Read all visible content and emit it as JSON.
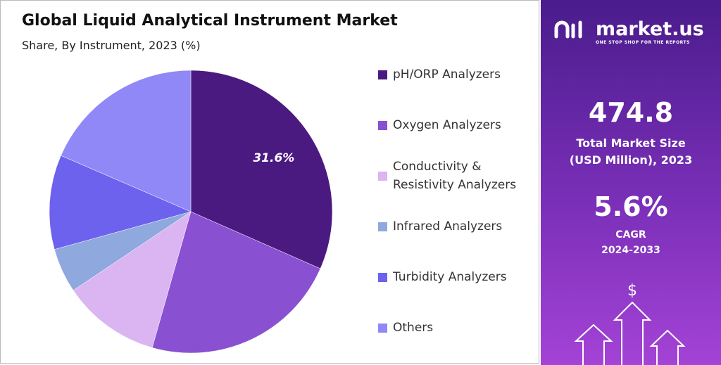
{
  "chart_data": {
    "type": "pie",
    "title": "Global Liquid Analytical Instrument Market",
    "subtitle": "Share, By Instrument, 2023 (%)",
    "categories": [
      "pH/ORP Analyzers",
      "Oxygen Analyzers",
      "Conductivity & Resistivity Analyzers",
      "Infrared Analyzers",
      "Turbidity Analyzers",
      "Others"
    ],
    "values": [
      31.6,
      22.8,
      11.2,
      5.1,
      10.8,
      18.5
    ],
    "value_labels": [
      "31.6%",
      null,
      null,
      null,
      null,
      null
    ],
    "colors": [
      "#4b1a80",
      "#8a50d2",
      "#dab5f2",
      "#8fa8dd",
      "#6c62ee",
      "#9088f6"
    ],
    "legend": "right"
  },
  "sidebar": {
    "brand": "market.us",
    "tagline": "ONE STOP SHOP FOR THE REPORTS",
    "market_size": "474.8",
    "market_size_label": "Total Market Size",
    "market_size_unit": "(USD Million), 2023",
    "cagr": "5.6%",
    "cagr_label": "CAGR",
    "cagr_period": "2024-2033"
  }
}
